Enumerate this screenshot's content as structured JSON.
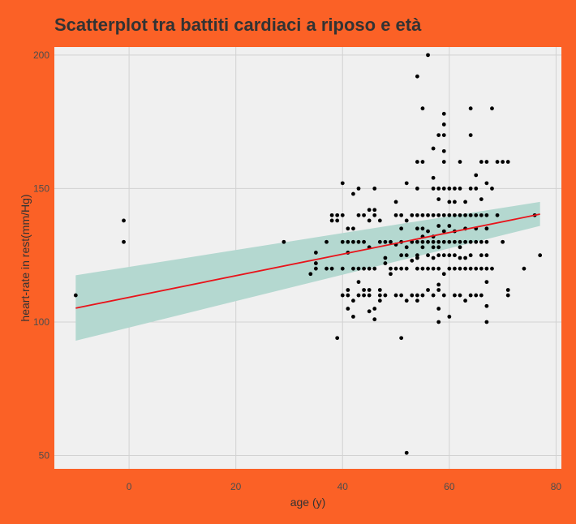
{
  "chart_data": {
    "type": "scatter",
    "title": "Scatterplot tra battiti cardiaci a riposo e età",
    "xlabel": "age (y)",
    "ylabel": "heart-rate in rest(mm/Hg)",
    "xlim": [
      -14,
      81
    ],
    "ylim": [
      45,
      203
    ],
    "xticks": [
      0,
      20,
      40,
      60,
      80
    ],
    "yticks": [
      50,
      100,
      150,
      200
    ],
    "grid": true,
    "colors": {
      "background": "#FB6126",
      "panel": "#F0F0F0",
      "grid": "#D2D2D2",
      "points": "#000000",
      "fit_line": "#E8141B",
      "confidence_band": "#B4D8D0"
    },
    "fit": {
      "type": "linear",
      "x": [
        -10,
        77
      ],
      "y": [
        105.2,
        140.4
      ],
      "band_lower": [
        93,
        136
      ],
      "band_upper": [
        117.5,
        145
      ]
    },
    "points": [
      [
        -10,
        110
      ],
      [
        -1,
        130
      ],
      [
        -1,
        138
      ],
      [
        29,
        130
      ],
      [
        34,
        118
      ],
      [
        35,
        120
      ],
      [
        35,
        122
      ],
      [
        35,
        126
      ],
      [
        37,
        130
      ],
      [
        37,
        120
      ],
      [
        38,
        120
      ],
      [
        38,
        138
      ],
      [
        38,
        140
      ],
      [
        39,
        94
      ],
      [
        39,
        138
      ],
      [
        39,
        140
      ],
      [
        40,
        152
      ],
      [
        40,
        130
      ],
      [
        40,
        110
      ],
      [
        40,
        140
      ],
      [
        40,
        120
      ],
      [
        41,
        110
      ],
      [
        41,
        105
      ],
      [
        41,
        112
      ],
      [
        41,
        126
      ],
      [
        41,
        130
      ],
      [
        41,
        135
      ],
      [
        42,
        102
      ],
      [
        42,
        120
      ],
      [
        42,
        130
      ],
      [
        42,
        135
      ],
      [
        42,
        148
      ],
      [
        42,
        108
      ],
      [
        43,
        110
      ],
      [
        43,
        150
      ],
      [
        43,
        140
      ],
      [
        43,
        130
      ],
      [
        43,
        120
      ],
      [
        43,
        115
      ],
      [
        44,
        130
      ],
      [
        44,
        120
      ],
      [
        44,
        112
      ],
      [
        44,
        110
      ],
      [
        44,
        140
      ],
      [
        45,
        104
      ],
      [
        45,
        110
      ],
      [
        45,
        112
      ],
      [
        45,
        120
      ],
      [
        45,
        128
      ],
      [
        45,
        138
      ],
      [
        45,
        142
      ],
      [
        46,
        101
      ],
      [
        46,
        105
      ],
      [
        46,
        120
      ],
      [
        46,
        140
      ],
      [
        46,
        142
      ],
      [
        46,
        150
      ],
      [
        47,
        108
      ],
      [
        47,
        110
      ],
      [
        47,
        112
      ],
      [
        47,
        130
      ],
      [
        47,
        138
      ],
      [
        48,
        110
      ],
      [
        48,
        122
      ],
      [
        48,
        124
      ],
      [
        48,
        130
      ],
      [
        49,
        120
      ],
      [
        49,
        130
      ],
      [
        49,
        118
      ],
      [
        50,
        110
      ],
      [
        50,
        120
      ],
      [
        50,
        129
      ],
      [
        50,
        140
      ],
      [
        50,
        145
      ],
      [
        51,
        94
      ],
      [
        51,
        110
      ],
      [
        51,
        120
      ],
      [
        51,
        125
      ],
      [
        51,
        130
      ],
      [
        51,
        135
      ],
      [
        51,
        140
      ],
      [
        52,
        51
      ],
      [
        52,
        108
      ],
      [
        52,
        120
      ],
      [
        52,
        125
      ],
      [
        52,
        128
      ],
      [
        52,
        138
      ],
      [
        52,
        152
      ],
      [
        53,
        110
      ],
      [
        53,
        123
      ],
      [
        53,
        130
      ],
      [
        53,
        140
      ],
      [
        54,
        108
      ],
      [
        54,
        110
      ],
      [
        54,
        120
      ],
      [
        54,
        124
      ],
      [
        54,
        125
      ],
      [
        54,
        130
      ],
      [
        54,
        135
      ],
      [
        54,
        140
      ],
      [
        54,
        150
      ],
      [
        54,
        160
      ],
      [
        54,
        192
      ],
      [
        55,
        110
      ],
      [
        55,
        120
      ],
      [
        55,
        128
      ],
      [
        55,
        130
      ],
      [
        55,
        132
      ],
      [
        55,
        135
      ],
      [
        55,
        140
      ],
      [
        55,
        160
      ],
      [
        55,
        180
      ],
      [
        56,
        112
      ],
      [
        56,
        120
      ],
      [
        56,
        125
      ],
      [
        56,
        130
      ],
      [
        56,
        134
      ],
      [
        56,
        140
      ],
      [
        56,
        200
      ],
      [
        57,
        110
      ],
      [
        57,
        120
      ],
      [
        57,
        124
      ],
      [
        57,
        128
      ],
      [
        57,
        130
      ],
      [
        57,
        132
      ],
      [
        57,
        140
      ],
      [
        57,
        150
      ],
      [
        57,
        154
      ],
      [
        57,
        165
      ],
      [
        58,
        100
      ],
      [
        58,
        105
      ],
      [
        58,
        112
      ],
      [
        58,
        114
      ],
      [
        58,
        120
      ],
      [
        58,
        125
      ],
      [
        58,
        128
      ],
      [
        58,
        130
      ],
      [
        58,
        136
      ],
      [
        58,
        140
      ],
      [
        58,
        146
      ],
      [
        58,
        150
      ],
      [
        58,
        170
      ],
      [
        59,
        110
      ],
      [
        59,
        118
      ],
      [
        59,
        125
      ],
      [
        59,
        130
      ],
      [
        59,
        134
      ],
      [
        59,
        140
      ],
      [
        59,
        150
      ],
      [
        59,
        160
      ],
      [
        59,
        164
      ],
      [
        59,
        170
      ],
      [
        59,
        174
      ],
      [
        59,
        178
      ],
      [
        60,
        102
      ],
      [
        60,
        120
      ],
      [
        60,
        125
      ],
      [
        60,
        130
      ],
      [
        60,
        136
      ],
      [
        60,
        140
      ],
      [
        60,
        145
      ],
      [
        60,
        150
      ],
      [
        61,
        110
      ],
      [
        61,
        120
      ],
      [
        61,
        125
      ],
      [
        61,
        130
      ],
      [
        61,
        134
      ],
      [
        61,
        140
      ],
      [
        61,
        145
      ],
      [
        61,
        150
      ],
      [
        62,
        110
      ],
      [
        62,
        120
      ],
      [
        62,
        124
      ],
      [
        62,
        128
      ],
      [
        62,
        130
      ],
      [
        62,
        140
      ],
      [
        62,
        150
      ],
      [
        62,
        160
      ],
      [
        63,
        108
      ],
      [
        63,
        120
      ],
      [
        63,
        124
      ],
      [
        63,
        130
      ],
      [
        63,
        135
      ],
      [
        63,
        140
      ],
      [
        63,
        145
      ],
      [
        64,
        110
      ],
      [
        64,
        120
      ],
      [
        64,
        125
      ],
      [
        64,
        130
      ],
      [
        64,
        140
      ],
      [
        64,
        150
      ],
      [
        64,
        170
      ],
      [
        64,
        180
      ],
      [
        65,
        110
      ],
      [
        65,
        120
      ],
      [
        65,
        130
      ],
      [
        65,
        135
      ],
      [
        65,
        140
      ],
      [
        65,
        150
      ],
      [
        65,
        155
      ],
      [
        66,
        110
      ],
      [
        66,
        120
      ],
      [
        66,
        125
      ],
      [
        66,
        130
      ],
      [
        66,
        140
      ],
      [
        66,
        146
      ],
      [
        66,
        160
      ],
      [
        67,
        100
      ],
      [
        67,
        106
      ],
      [
        67,
        115
      ],
      [
        67,
        120
      ],
      [
        67,
        125
      ],
      [
        67,
        130
      ],
      [
        67,
        135
      ],
      [
        67,
        140
      ],
      [
        67,
        152
      ],
      [
        67,
        160
      ],
      [
        68,
        120
      ],
      [
        68,
        150
      ],
      [
        68,
        180
      ],
      [
        69,
        140
      ],
      [
        69,
        160
      ],
      [
        70,
        130
      ],
      [
        70,
        160
      ],
      [
        71,
        110
      ],
      [
        71,
        112
      ],
      [
        71,
        160
      ],
      [
        74,
        120
      ],
      [
        76,
        140
      ],
      [
        77,
        125
      ]
    ]
  }
}
